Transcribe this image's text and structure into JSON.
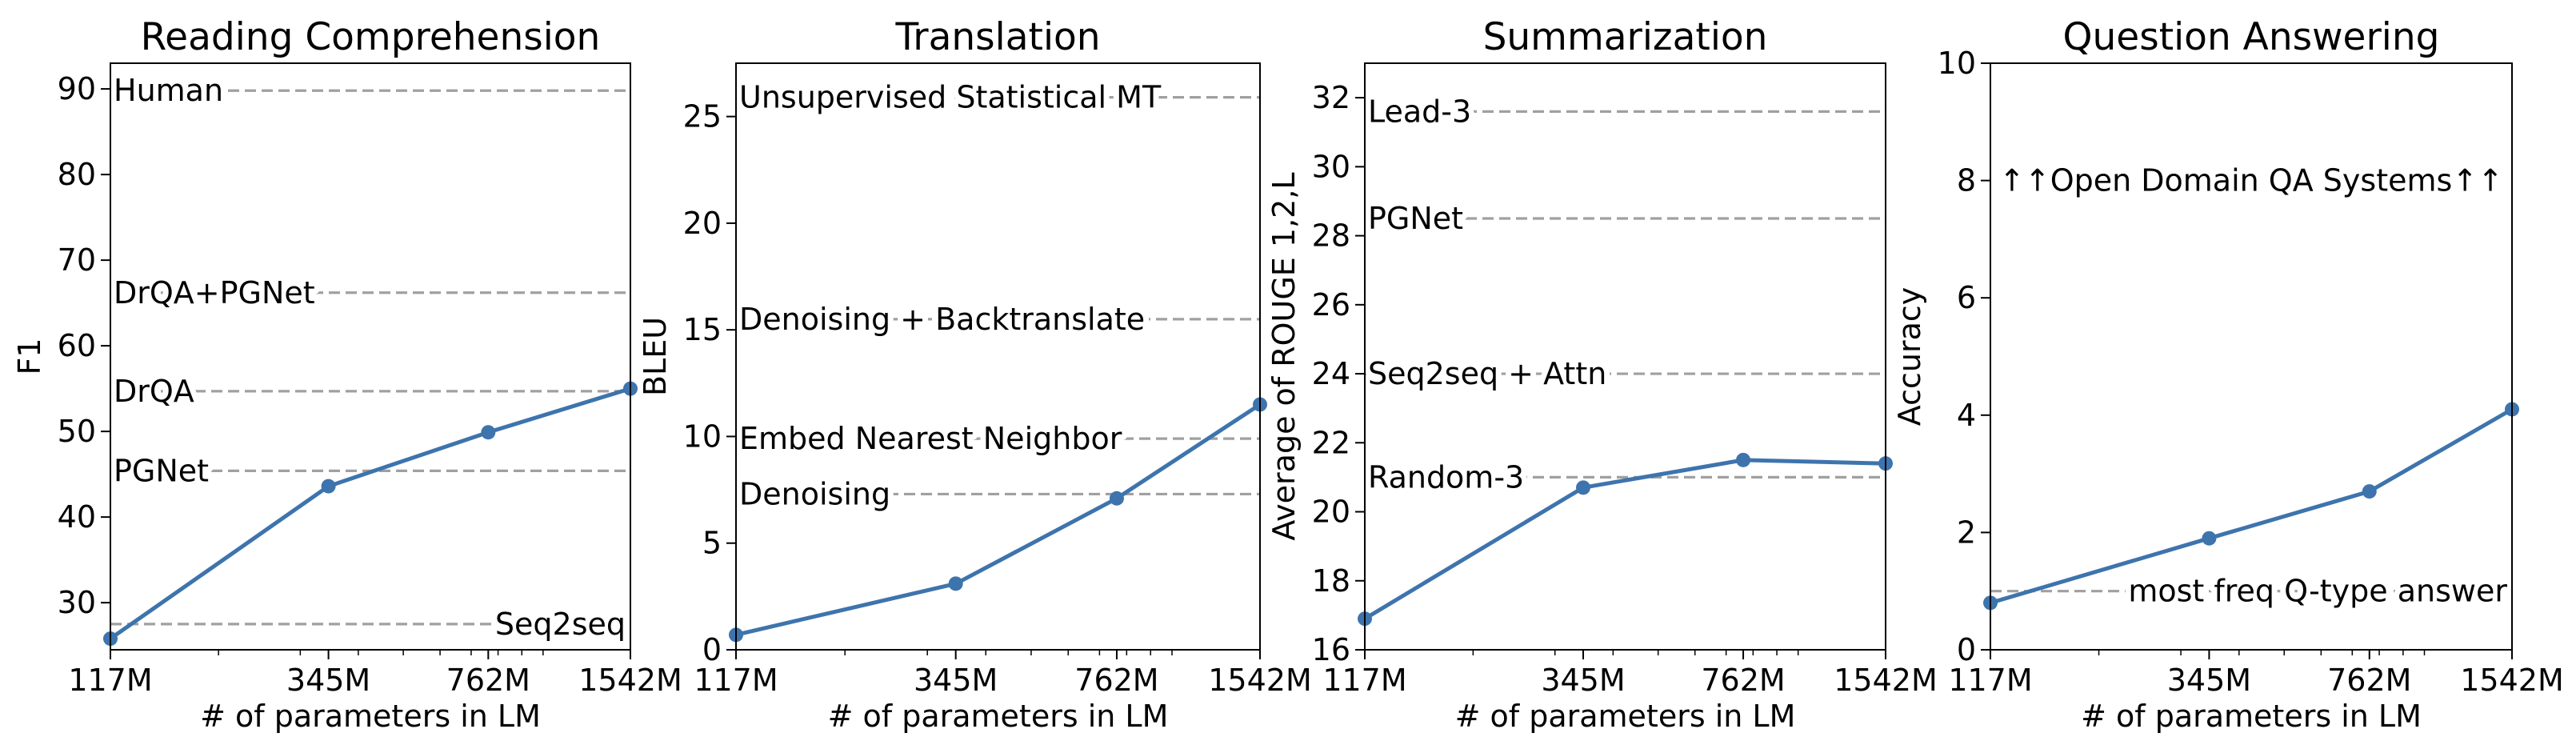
{
  "figure": {
    "line_color": "#3e74ad",
    "reference_color": "#a0a0a0"
  },
  "chart_data": [
    {
      "type": "line",
      "title": "Reading Comprehension",
      "xlabel": "# of parameters in LM",
      "ylabel": "F1",
      "x_scale": "log",
      "x": [
        117,
        345,
        762,
        1542
      ],
      "x_tick_labels": [
        "117M",
        "345M",
        "762M",
        "1542M"
      ],
      "ylim": [
        24.5,
        93
      ],
      "y_ticks": [
        30,
        40,
        50,
        60,
        70,
        80,
        90
      ],
      "grid": false,
      "series": [
        {
          "values": [
            25.8,
            43.6,
            49.9,
            55.0
          ]
        }
      ],
      "reference_lines": [
        {
          "label": "Human",
          "value": 89.8,
          "label_anchor": "left"
        },
        {
          "label": "DrQA+PGNet",
          "value": 66.2,
          "label_anchor": "left"
        },
        {
          "label": "DrQA",
          "value": 54.7,
          "label_anchor": "left"
        },
        {
          "label": "PGNet",
          "value": 45.4,
          "label_anchor": "left"
        },
        {
          "label": "Seq2seq",
          "value": 27.5,
          "label_anchor": "right"
        }
      ]
    },
    {
      "type": "line",
      "title": "Translation",
      "xlabel": "# of parameters in LM",
      "ylabel": "BLEU",
      "x_scale": "log",
      "x": [
        117,
        345,
        762,
        1542
      ],
      "x_tick_labels": [
        "117M",
        "345M",
        "762M",
        "1542M"
      ],
      "ylim": [
        0,
        27.5
      ],
      "y_ticks": [
        0,
        5,
        10,
        15,
        20,
        25
      ],
      "grid": false,
      "series": [
        {
          "values": [
            0.7,
            3.1,
            7.1,
            11.5
          ]
        }
      ],
      "reference_lines": [
        {
          "label": "Unsupervised Statistical MT",
          "value": 25.9,
          "label_anchor": "left"
        },
        {
          "label": "Denoising + Backtranslate",
          "value": 15.5,
          "label_anchor": "left"
        },
        {
          "label": "Embed Nearest Neighbor",
          "value": 9.9,
          "label_anchor": "left"
        },
        {
          "label": "Denoising",
          "value": 7.3,
          "label_anchor": "left"
        }
      ]
    },
    {
      "type": "line",
      "title": "Summarization",
      "xlabel": "# of parameters in LM",
      "ylabel": "Average of ROUGE 1,2,L",
      "x_scale": "log",
      "x": [
        117,
        345,
        762,
        1542
      ],
      "x_tick_labels": [
        "117M",
        "345M",
        "762M",
        "1542M"
      ],
      "ylim": [
        16,
        33
      ],
      "y_ticks": [
        16,
        18,
        20,
        22,
        24,
        26,
        28,
        30,
        32
      ],
      "grid": false,
      "series": [
        {
          "values": [
            16.9,
            20.7,
            21.5,
            21.4
          ]
        }
      ],
      "reference_lines": [
        {
          "label": "Lead-3",
          "value": 31.6,
          "label_anchor": "left"
        },
        {
          "label": "PGNet",
          "value": 28.5,
          "label_anchor": "left"
        },
        {
          "label": "Seq2seq + Attn",
          "value": 24.0,
          "label_anchor": "left"
        },
        {
          "label": "Random-3",
          "value": 21.0,
          "label_anchor": "left"
        }
      ]
    },
    {
      "type": "line",
      "title": "Question Answering",
      "xlabel": "# of parameters in LM",
      "ylabel": "Accuracy",
      "x_scale": "log",
      "x": [
        117,
        345,
        762,
        1542
      ],
      "x_tick_labels": [
        "117M",
        "345M",
        "762M",
        "1542M"
      ],
      "ylim": [
        0,
        10
      ],
      "y_ticks": [
        0,
        2,
        4,
        6,
        8,
        10
      ],
      "grid": false,
      "series": [
        {
          "values": [
            0.8,
            1.9,
            2.7,
            4.1
          ]
        }
      ],
      "reference_lines": [
        {
          "label": "most freq Q-type answer",
          "value": 1.0,
          "label_anchor": "right"
        }
      ],
      "annotations": [
        {
          "text": "↑↑Open Domain QA Systems↑↑",
          "value": 8.0
        }
      ]
    }
  ]
}
